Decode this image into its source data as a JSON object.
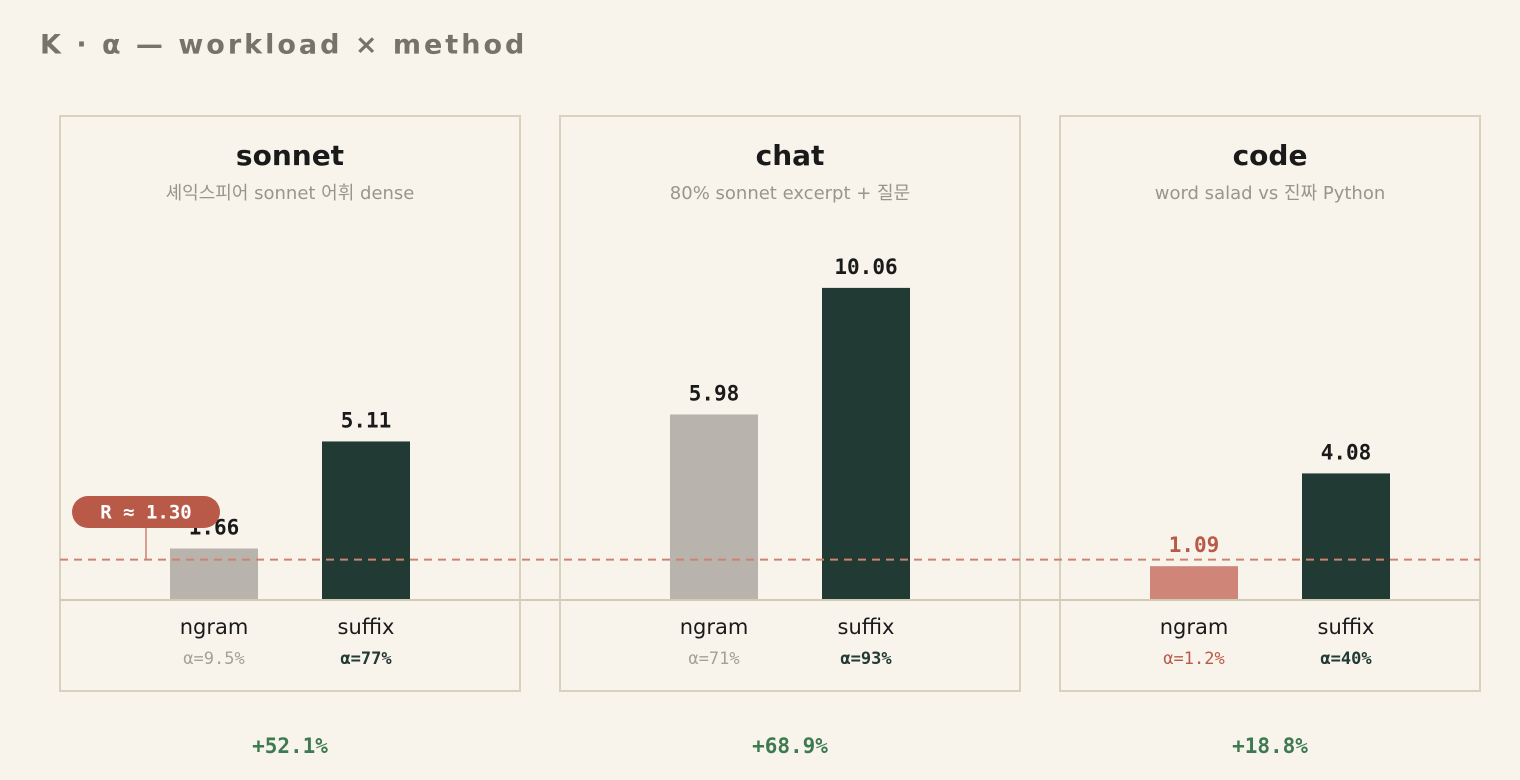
{
  "title": "K · α — workload × method",
  "reference_line": {
    "value": 1.3,
    "label": "R ≈ 1.30",
    "color": "#b85a47"
  },
  "chart_data": [
    {
      "type": "bar",
      "title": "sonnet",
      "subtitle": "셰익스피어 sonnet 어휘 dense",
      "categories": [
        "ngram",
        "suffix"
      ],
      "values": [
        1.66,
        5.11
      ],
      "colors": [
        "#b8b3ad",
        "#213a33"
      ],
      "sublabels": [
        "α=9.5%",
        "α=77%"
      ],
      "footer": "+52.1%",
      "ylim": [
        0,
        15.6
      ]
    },
    {
      "type": "bar",
      "title": "chat",
      "subtitle": "80% sonnet excerpt + 질문",
      "categories": [
        "ngram",
        "suffix"
      ],
      "values": [
        5.98,
        10.06
      ],
      "colors": [
        "#b8b3ad",
        "#213a33"
      ],
      "sublabels": [
        "α=71%",
        "α=93%"
      ],
      "footer": "+68.9%",
      "ylim": [
        0,
        15.6
      ]
    },
    {
      "type": "bar",
      "title": "code",
      "subtitle": "word salad vs 진짜 Python",
      "categories": [
        "ngram",
        "suffix"
      ],
      "values": [
        1.09,
        4.08
      ],
      "colors": [
        "#cf8577",
        "#213a33"
      ],
      "sublabels": [
        "α=1.2%",
        "α=40%"
      ],
      "footer": "+18.8%",
      "ylim": [
        0,
        15.6
      ]
    }
  ]
}
